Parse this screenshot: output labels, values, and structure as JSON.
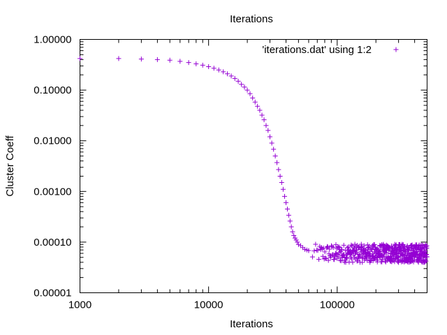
{
  "chart_data": {
    "type": "scatter",
    "title": "Iterations",
    "xlabel": "Iterations",
    "ylabel": "Cluster Coeff",
    "x_scale": "log",
    "y_scale": "log",
    "xlim": [
      1000,
      500000
    ],
    "ylim": [
      1e-05,
      1.0
    ],
    "x_ticks": [
      {
        "value": 1000,
        "label": "1000"
      },
      {
        "value": 10000,
        "label": "10000"
      },
      {
        "value": 100000,
        "label": "100000"
      }
    ],
    "y_ticks": [
      {
        "value": 1.0,
        "label": "1.00000"
      },
      {
        "value": 0.1,
        "label": "0.10000"
      },
      {
        "value": 0.01,
        "label": "0.01000"
      },
      {
        "value": 0.001,
        "label": "0.00100"
      },
      {
        "value": 0.0001,
        "label": "0.00010"
      },
      {
        "value": 1e-05,
        "label": "0.00001"
      }
    ],
    "grid": false,
    "legend_position": "top-right",
    "series": [
      {
        "name": "'iterations.dat' using 1:2",
        "color": "#9400d3",
        "marker": "plus",
        "x": [
          1000,
          2000,
          3000,
          4000,
          5000,
          6000,
          7000,
          8000,
          9000,
          10000,
          11000,
          12000,
          13000,
          14000,
          15000,
          16000,
          17000,
          18000,
          19000,
          20000,
          21000,
          22000,
          23000,
          24000,
          25000,
          26000,
          27000,
          28000,
          29000,
          30000,
          31000,
          32000,
          33000,
          34000,
          35000,
          36000,
          37000,
          38000,
          39000,
          40000,
          41000,
          42000,
          43000,
          44000,
          45000,
          46000,
          47000,
          48000,
          49000,
          50000,
          52000,
          54000,
          56000,
          58000,
          60000
        ],
        "y": [
          0.42,
          0.42,
          0.41,
          0.4,
          0.39,
          0.37,
          0.35,
          0.33,
          0.31,
          0.29,
          0.27,
          0.25,
          0.23,
          0.21,
          0.19,
          0.17,
          0.15,
          0.13,
          0.115,
          0.1,
          0.085,
          0.07,
          0.058,
          0.048,
          0.04,
          0.032,
          0.026,
          0.02,
          0.016,
          0.012,
          0.009,
          0.0068,
          0.005,
          0.0037,
          0.0027,
          0.002,
          0.0015,
          0.0011,
          0.0008,
          0.0006,
          0.00045,
          0.00034,
          0.00026,
          0.0002,
          0.00016,
          0.000135,
          0.00012,
          0.00011,
          0.0001,
          9e-05,
          8.5e-05,
          7.8e-05,
          7.2e-05,
          7e-05,
          6.8e-05
        ]
      }
    ],
    "noisy_tail": {
      "x_range": [
        60000,
        500000
      ],
      "y_range": [
        4e-05,
        8e-05
      ],
      "typical_y": 6e-05
    }
  }
}
